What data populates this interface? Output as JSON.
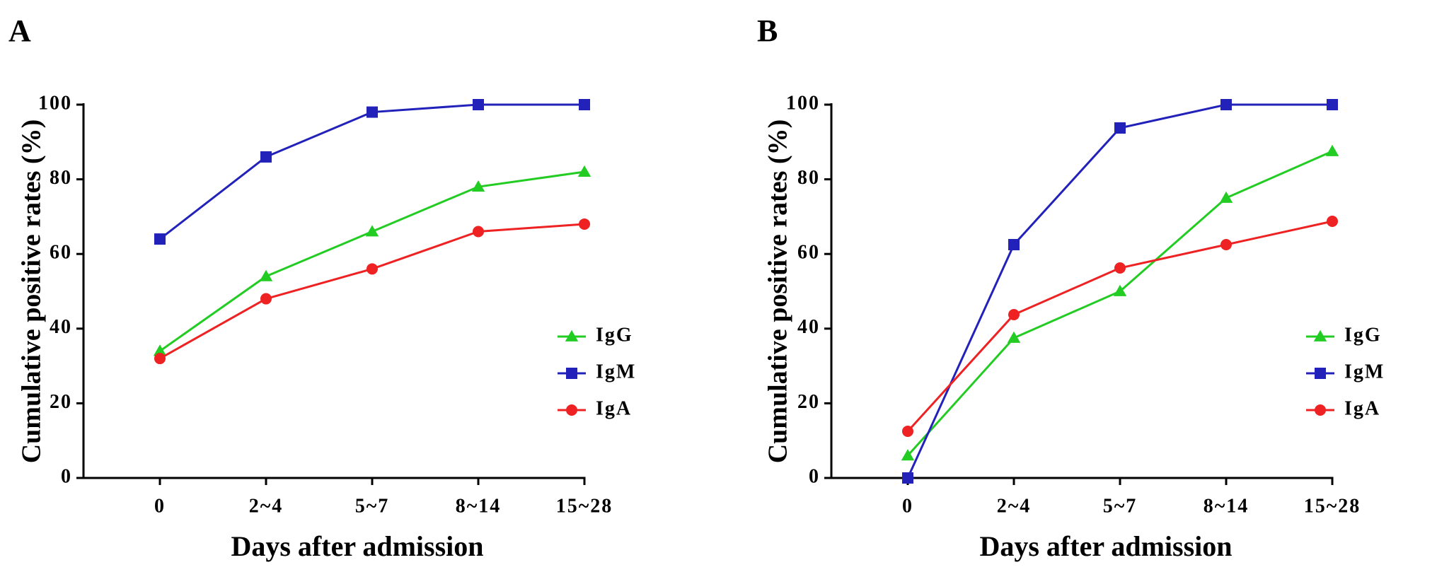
{
  "chart_data": [
    {
      "type": "line",
      "panel_label": "A",
      "title": "",
      "xlabel": "Days after admission",
      "ylabel": "Cumulative positive rates (%)",
      "categories": [
        "0",
        "2~4",
        "5~7",
        "8~14",
        "15~28"
      ],
      "ylim": [
        0,
        100
      ],
      "yticks": [
        "0",
        "20",
        "40",
        "60",
        "80",
        "100"
      ],
      "grid": false,
      "legend_position": "right",
      "series": [
        {
          "name": "IgG",
          "color": "#22cc22",
          "marker": "triangle",
          "values": [
            34,
            54,
            66,
            78,
            82
          ]
        },
        {
          "name": "IgM",
          "color": "#2222bb",
          "marker": "square",
          "values": [
            64,
            86,
            98,
            100,
            100
          ]
        },
        {
          "name": "IgA",
          "color": "#ee2222",
          "marker": "circle",
          "values": [
            32,
            48,
            56,
            66,
            68
          ]
        }
      ]
    },
    {
      "type": "line",
      "panel_label": "B",
      "title": "",
      "xlabel": "Days after admission",
      "ylabel": "Cumulative positive rates (%)",
      "categories": [
        "0",
        "2~4",
        "5~7",
        "8~14",
        "15~28"
      ],
      "ylim": [
        0,
        100
      ],
      "yticks": [
        "0",
        "20",
        "40",
        "60",
        "80",
        "100"
      ],
      "grid": false,
      "legend_position": "right",
      "series": [
        {
          "name": "IgG",
          "color": "#22cc22",
          "marker": "triangle",
          "values": [
            6,
            37.5,
            50,
            75,
            87.5
          ]
        },
        {
          "name": "IgM",
          "color": "#2222bb",
          "marker": "square",
          "values": [
            0,
            62.5,
            93.75,
            100,
            100
          ]
        },
        {
          "name": "IgA",
          "color": "#ee2222",
          "marker": "circle",
          "values": [
            12.5,
            43.75,
            56.25,
            62.5,
            68.75
          ]
        }
      ]
    }
  ]
}
